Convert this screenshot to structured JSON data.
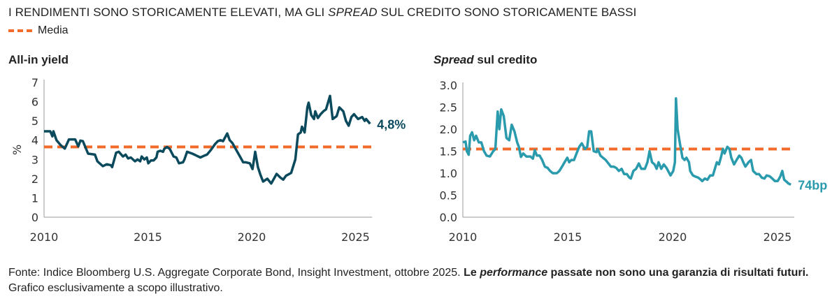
{
  "title_parts": [
    "I RENDIMENTI SONO STORICAMENTE ELEVATI, MA GLI ",
    "SPREAD",
    " SUL CREDITO SONO STORICAMENTE BASSI"
  ],
  "legend": {
    "label": "Media",
    "color": "#f26b2a"
  },
  "footnote": {
    "p1": "Fonte: Indice Bloomberg U.S. Aggregate Corporate Bond, Insight Investment, ottobre 2025. ",
    "p2": "Le ",
    "p3": "performance",
    "p4": " passate non sono una garanzia di risultati futuri.",
    "p5": " Grafico esclusivamente a scopo illustrativo."
  },
  "chart_data": [
    {
      "type": "line",
      "title": "All-in yield",
      "ylabel": "%",
      "xlim": [
        2010,
        2025.8
      ],
      "ylim": [
        0,
        7
      ],
      "yticks": [
        "0",
        "1",
        "2",
        "3",
        "4",
        "5",
        "6",
        "7"
      ],
      "xticks": [
        "2010",
        "2015",
        "2020",
        "2025"
      ],
      "average": 3.65,
      "color": "#0b4a5c",
      "end_label": "4,8%",
      "points": [
        [
          2010,
          4.46
        ],
        [
          2010.3,
          4.46
        ],
        [
          2010.4,
          4.2
        ],
        [
          2010.45,
          4.46
        ],
        [
          2010.6,
          4.0
        ],
        [
          2010.8,
          3.74
        ],
        [
          2011.0,
          3.56
        ],
        [
          2011.2,
          4.04
        ],
        [
          2011.5,
          4.04
        ],
        [
          2011.65,
          3.68
        ],
        [
          2011.75,
          3.98
        ],
        [
          2011.87,
          3.95
        ],
        [
          2012.12,
          3.3
        ],
        [
          2012.45,
          3.25
        ],
        [
          2012.57,
          2.9
        ],
        [
          2012.83,
          2.65
        ],
        [
          2013.02,
          2.75
        ],
        [
          2013.22,
          2.7
        ],
        [
          2013.28,
          2.6
        ],
        [
          2013.47,
          3.35
        ],
        [
          2013.6,
          3.4
        ],
        [
          2013.8,
          3.15
        ],
        [
          2013.93,
          3.25
        ],
        [
          2014.05,
          3.05
        ],
        [
          2014.18,
          3.1
        ],
        [
          2014.38,
          2.9
        ],
        [
          2014.5,
          3.0
        ],
        [
          2014.63,
          2.9
        ],
        [
          2014.7,
          3.15
        ],
        [
          2014.83,
          3.0
        ],
        [
          2014.95,
          3.1
        ],
        [
          2015.02,
          2.8
        ],
        [
          2015.15,
          2.95
        ],
        [
          2015.28,
          2.95
        ],
        [
          2015.41,
          3.1
        ],
        [
          2015.47,
          3.4
        ],
        [
          2015.6,
          3.45
        ],
        [
          2015.73,
          3.4
        ],
        [
          2015.79,
          3.55
        ],
        [
          2015.92,
          3.65
        ],
        [
          2016.05,
          3.55
        ],
        [
          2016.24,
          3.15
        ],
        [
          2016.37,
          3.1
        ],
        [
          2016.5,
          2.8
        ],
        [
          2016.69,
          2.85
        ],
        [
          2016.76,
          3.0
        ],
        [
          2016.89,
          3.4
        ],
        [
          2017.01,
          3.35
        ],
        [
          2017.14,
          3.3
        ],
        [
          2017.34,
          3.2
        ],
        [
          2017.53,
          3.1
        ],
        [
          2017.72,
          3.2
        ],
        [
          2017.85,
          3.25
        ],
        [
          2018.04,
          3.5
        ],
        [
          2018.24,
          3.8
        ],
        [
          2018.37,
          3.95
        ],
        [
          2018.49,
          4.0
        ],
        [
          2018.62,
          3.95
        ],
        [
          2018.82,
          4.35
        ],
        [
          2018.94,
          4.0
        ],
        [
          2019.07,
          3.85
        ],
        [
          2019.2,
          3.6
        ],
        [
          2019.33,
          3.35
        ],
        [
          2019.46,
          3.1
        ],
        [
          2019.59,
          2.85
        ],
        [
          2019.72,
          2.85
        ],
        [
          2019.91,
          2.8
        ],
        [
          2020.04,
          2.5
        ],
        [
          2020.17,
          3.4
        ],
        [
          2020.3,
          2.6
        ],
        [
          2020.42,
          2.2
        ],
        [
          2020.55,
          1.85
        ],
        [
          2020.75,
          2.0
        ],
        [
          2020.94,
          1.75
        ],
        [
          2021.07,
          2.0
        ],
        [
          2021.2,
          2.25
        ],
        [
          2021.39,
          2.05
        ],
        [
          2021.52,
          1.95
        ],
        [
          2021.65,
          2.15
        ],
        [
          2021.9,
          2.3
        ],
        [
          2022.1,
          3.0
        ],
        [
          2022.23,
          4.3
        ],
        [
          2022.36,
          4.4
        ],
        [
          2022.42,
          4.7
        ],
        [
          2022.55,
          4.4
        ],
        [
          2022.68,
          5.7
        ],
        [
          2022.74,
          5.95
        ],
        [
          2022.87,
          5.3
        ],
        [
          2023.0,
          5.1
        ],
        [
          2023.06,
          5.5
        ],
        [
          2023.19,
          5.15
        ],
        [
          2023.32,
          5.35
        ],
        [
          2023.45,
          5.5
        ],
        [
          2023.58,
          5.6
        ],
        [
          2023.77,
          6.3
        ],
        [
          2023.9,
          5.1
        ],
        [
          2024.09,
          5.25
        ],
        [
          2024.22,
          5.7
        ],
        [
          2024.41,
          5.5
        ],
        [
          2024.54,
          5.0
        ],
        [
          2024.67,
          4.75
        ],
        [
          2024.8,
          5.2
        ],
        [
          2024.93,
          5.35
        ],
        [
          2025.12,
          5.1
        ],
        [
          2025.32,
          5.2
        ],
        [
          2025.44,
          5.0
        ],
        [
          2025.51,
          5.1
        ],
        [
          2025.7,
          4.85
        ]
      ]
    },
    {
      "type": "line",
      "title_parts": [
        "Spread",
        " sul credito"
      ],
      "xlim": [
        2010,
        2025.8
      ],
      "ylim": [
        0,
        3
      ],
      "yticks": [
        "0.0",
        "0.5",
        "1.0",
        "1.5",
        "2.0",
        "2.5",
        "3.0"
      ],
      "xticks": [
        "2010",
        "2015",
        "2020",
        "2025"
      ],
      "average": 1.55,
      "color": "#2a9aad",
      "end_label": "74bp",
      "points": [
        [
          2010,
          1.7
        ],
        [
          2010.13,
          1.72
        ],
        [
          2010.19,
          1.5
        ],
        [
          2010.28,
          1.42
        ],
        [
          2010.35,
          1.85
        ],
        [
          2010.44,
          1.93
        ],
        [
          2010.54,
          1.75
        ],
        [
          2010.63,
          1.85
        ],
        [
          2010.76,
          1.7
        ],
        [
          2010.88,
          1.7
        ],
        [
          2011.01,
          1.5
        ],
        [
          2011.13,
          1.4
        ],
        [
          2011.29,
          1.38
        ],
        [
          2011.45,
          1.5
        ],
        [
          2011.55,
          1.55
        ],
        [
          2011.66,
          2.4
        ],
        [
          2011.74,
          2.0
        ],
        [
          2011.83,
          2.45
        ],
        [
          2011.95,
          2.3
        ],
        [
          2012.08,
          1.8
        ],
        [
          2012.21,
          1.75
        ],
        [
          2012.33,
          2.1
        ],
        [
          2012.46,
          1.95
        ],
        [
          2012.59,
          1.7
        ],
        [
          2012.67,
          1.6
        ],
        [
          2012.77,
          1.37
        ],
        [
          2012.88,
          1.45
        ],
        [
          2013.03,
          1.38
        ],
        [
          2013.22,
          1.38
        ],
        [
          2013.34,
          1.33
        ],
        [
          2013.43,
          1.52
        ],
        [
          2013.53,
          1.4
        ],
        [
          2013.66,
          1.4
        ],
        [
          2013.78,
          1.3
        ],
        [
          2013.91,
          1.15
        ],
        [
          2014.04,
          1.12
        ],
        [
          2014.16,
          1.05
        ],
        [
          2014.29,
          1.0
        ],
        [
          2014.48,
          1.0
        ],
        [
          2014.6,
          1.05
        ],
        [
          2014.73,
          1.15
        ],
        [
          2014.85,
          1.25
        ],
        [
          2014.98,
          1.35
        ],
        [
          2015.07,
          1.25
        ],
        [
          2015.17,
          1.3
        ],
        [
          2015.3,
          1.3
        ],
        [
          2015.42,
          1.45
        ],
        [
          2015.55,
          1.6
        ],
        [
          2015.67,
          1.68
        ],
        [
          2015.82,
          1.55
        ],
        [
          2015.93,
          1.6
        ],
        [
          2016.02,
          1.95
        ],
        [
          2016.12,
          1.95
        ],
        [
          2016.24,
          1.5
        ],
        [
          2016.37,
          1.48
        ],
        [
          2016.43,
          1.55
        ],
        [
          2016.56,
          1.4
        ],
        [
          2016.68,
          1.35
        ],
        [
          2016.81,
          1.3
        ],
        [
          2016.94,
          1.22
        ],
        [
          2017.06,
          1.15
        ],
        [
          2017.19,
          1.15
        ],
        [
          2017.31,
          1.12
        ],
        [
          2017.44,
          1.05
        ],
        [
          2017.57,
          1.1
        ],
        [
          2017.69,
          0.98
        ],
        [
          2017.82,
          0.98
        ],
        [
          2017.94,
          0.9
        ],
        [
          2018.01,
          0.88
        ],
        [
          2018.13,
          1.05
        ],
        [
          2018.26,
          1.1
        ],
        [
          2018.39,
          1.22
        ],
        [
          2018.51,
          1.1
        ],
        [
          2018.68,
          1.1
        ],
        [
          2018.8,
          1.25
        ],
        [
          2018.9,
          1.5
        ],
        [
          2019.02,
          1.25
        ],
        [
          2019.14,
          1.2
        ],
        [
          2019.24,
          1.1
        ],
        [
          2019.33,
          1.25
        ],
        [
          2019.46,
          1.1
        ],
        [
          2019.58,
          1.2
        ],
        [
          2019.71,
          1.12
        ],
        [
          2019.9,
          0.95
        ],
        [
          2020.03,
          1.05
        ],
        [
          2020.11,
          1.25
        ],
        [
          2020.16,
          2.7
        ],
        [
          2020.24,
          2.0
        ],
        [
          2020.34,
          1.7
        ],
        [
          2020.47,
          1.35
        ],
        [
          2020.57,
          1.3
        ],
        [
          2020.66,
          1.35
        ],
        [
          2020.78,
          1.25
        ],
        [
          2020.84,
          1.05
        ],
        [
          2020.97,
          0.95
        ],
        [
          2021.1,
          0.92
        ],
        [
          2021.22,
          0.9
        ],
        [
          2021.35,
          0.85
        ],
        [
          2021.41,
          0.82
        ],
        [
          2021.54,
          0.88
        ],
        [
          2021.66,
          0.85
        ],
        [
          2021.79,
          0.95
        ],
        [
          2021.92,
          0.95
        ],
        [
          2022.11,
          1.25
        ],
        [
          2022.21,
          1.2
        ],
        [
          2022.3,
          1.35
        ],
        [
          2022.4,
          1.55
        ],
        [
          2022.48,
          1.45
        ],
        [
          2022.61,
          1.6
        ],
        [
          2022.71,
          1.55
        ],
        [
          2022.8,
          1.35
        ],
        [
          2022.93,
          1.2
        ],
        [
          2023.05,
          1.3
        ],
        [
          2023.18,
          1.4
        ],
        [
          2023.28,
          1.35
        ],
        [
          2023.37,
          1.25
        ],
        [
          2023.47,
          1.15
        ],
        [
          2023.62,
          1.25
        ],
        [
          2023.74,
          1.3
        ],
        [
          2023.84,
          1.05
        ],
        [
          2024.0,
          0.98
        ],
        [
          2024.12,
          0.98
        ],
        [
          2024.25,
          0.9
        ],
        [
          2024.38,
          0.88
        ],
        [
          2024.48,
          0.95
        ],
        [
          2024.63,
          0.93
        ],
        [
          2024.75,
          0.88
        ],
        [
          2024.88,
          0.82
        ],
        [
          2025.01,
          0.82
        ],
        [
          2025.13,
          0.92
        ],
        [
          2025.23,
          1.05
        ],
        [
          2025.32,
          0.85
        ],
        [
          2025.45,
          0.8
        ],
        [
          2025.51,
          0.77
        ],
        [
          2025.64,
          0.74
        ]
      ]
    }
  ]
}
